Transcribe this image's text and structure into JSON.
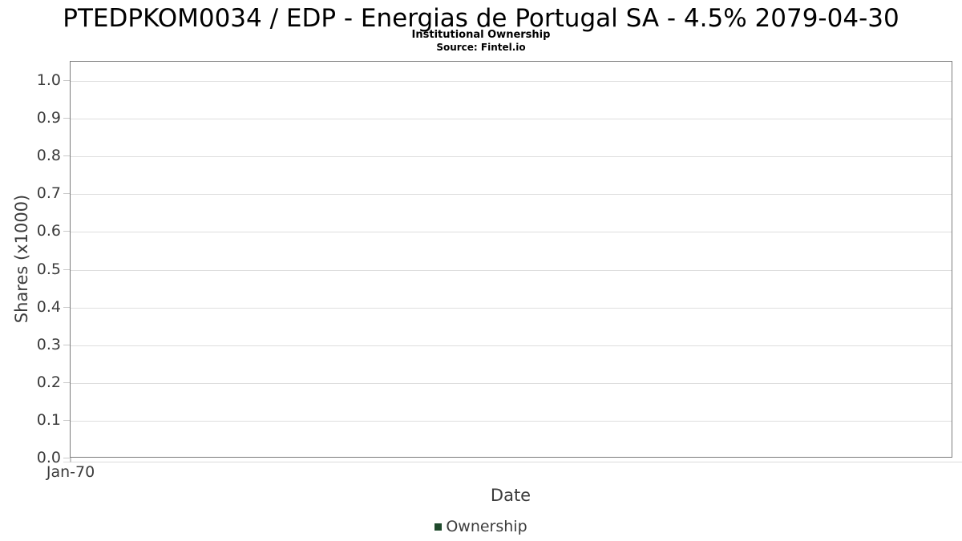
{
  "header": {
    "title": "PTEDPKOM0034 / EDP - Energias de Portugal SA - 4.5% 2079-04-30",
    "subtitle": "Institutional Ownership",
    "source": "Source: Fintel.io"
  },
  "chart_data": {
    "type": "line",
    "title": "PTEDPKOM0034 / EDP - Energias de Portugal SA - 4.5% 2079-04-30",
    "subtitle": "Institutional Ownership",
    "source": "Source: Fintel.io",
    "xlabel": "Date",
    "ylabel": "Shares (x1000)",
    "x_tick_labels": [
      "Jan-70"
    ],
    "y_tick_labels": [
      "0.0",
      "0.1",
      "0.2",
      "0.3",
      "0.4",
      "0.5",
      "0.6",
      "0.7",
      "0.8",
      "0.9",
      "1.0"
    ],
    "y_ticks": [
      0.0,
      0.1,
      0.2,
      0.3,
      0.4,
      0.5,
      0.6,
      0.7,
      0.8,
      0.9,
      1.0
    ],
    "ylim": [
      0.0,
      1.05
    ],
    "grid": "horizontal",
    "legend": {
      "position": "bottom-center",
      "entries": [
        {
          "label": "Ownership",
          "color": "#1f4a2c"
        }
      ]
    },
    "series": [
      {
        "name": "Ownership",
        "x": [],
        "values": []
      }
    ],
    "notes": "empty plot - no data points rendered"
  },
  "colors": {
    "plot_border": "#7b7b7b",
    "gridline": "#dedede",
    "tick": "#c8c8c8",
    "label_text": "#3c3c3c",
    "title_text": "#000000",
    "legend_green": "#1f4a2c",
    "background": "#ffffff"
  }
}
